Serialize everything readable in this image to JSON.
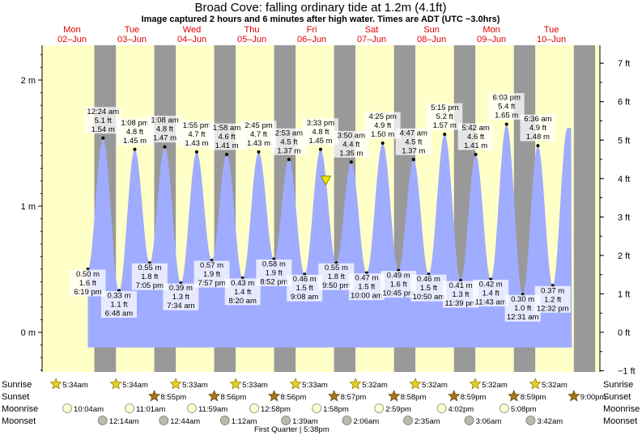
{
  "chart_data": {
    "type": "area",
    "title": "Broad Cove: falling  ordinary tide at 1.2m (4.1ft)",
    "subtitle": "Image captured 2 hours and 6 minutes after high water. Times are ADT (UTC −3.0hrs)",
    "left_axis": {
      "unit": "m",
      "range": [
        -0.3,
        2.25
      ],
      "ticks": [
        {
          "v": 0,
          "label": "0 m"
        },
        {
          "v": 1,
          "label": "1 m"
        },
        {
          "v": 2,
          "label": "2 m"
        }
      ]
    },
    "right_axis": {
      "unit": "ft",
      "ticks": [
        "−1 ft",
        "0 ft",
        "1 ft",
        "2 ft",
        "3 ft",
        "4 ft",
        "5 ft",
        "6 ft",
        "7 ft"
      ]
    },
    "x_range_days": [
      0,
      9.31
    ],
    "days": [
      {
        "dow": "Mon",
        "date": "02–Jun"
      },
      {
        "dow": "Tue",
        "date": "03–Jun"
      },
      {
        "dow": "Wed",
        "date": "04–Jun"
      },
      {
        "dow": "Thu",
        "date": "05–Jun"
      },
      {
        "dow": "Fri",
        "date": "06–Jun"
      },
      {
        "dow": "Sat",
        "date": "07–Jun"
      },
      {
        "dow": "Sun",
        "date": "08–Jun"
      },
      {
        "dow": "Mon",
        "date": "09–Jun"
      },
      {
        "dow": "Tue",
        "date": "10–Jun"
      }
    ],
    "extremes": [
      {
        "t": "6:19 pm",
        "ft": "1.6 ft",
        "m": "0.50 m",
        "type": "low",
        "day": 0,
        "h": 18.32,
        "v": 0.5
      },
      {
        "t": "12:24 am",
        "ft": "5.1 ft",
        "m": "1.54 m",
        "type": "high",
        "day": 1,
        "h": 0.4,
        "v": 1.54
      },
      {
        "t": "6:48 am",
        "ft": "1.1 ft",
        "m": "0.33 m",
        "type": "low",
        "day": 1,
        "h": 6.8,
        "v": 0.33
      },
      {
        "t": "1:08 pm",
        "ft": "4.8 ft",
        "m": "1.45 m",
        "type": "high",
        "day": 1,
        "h": 13.13,
        "v": 1.45
      },
      {
        "t": "7:05 pm",
        "ft": "1.8 ft",
        "m": "0.55 m",
        "type": "low",
        "day": 1,
        "h": 19.08,
        "v": 0.55
      },
      {
        "t": "1:08 am",
        "ft": "4.8 ft",
        "m": "1.47 m",
        "type": "high",
        "day": 2,
        "h": 1.13,
        "v": 1.47
      },
      {
        "t": "7:34 am",
        "ft": "1.3 ft",
        "m": "0.39 m",
        "type": "low",
        "day": 2,
        "h": 7.57,
        "v": 0.39
      },
      {
        "t": "1:55 pm",
        "ft": "4.7 ft",
        "m": "1.43 m",
        "type": "high",
        "day": 2,
        "h": 13.92,
        "v": 1.43
      },
      {
        "t": "7:57 pm",
        "ft": "1.9 ft",
        "m": "0.57 m",
        "type": "low",
        "day": 2,
        "h": 19.95,
        "v": 0.57
      },
      {
        "t": "1:58 am",
        "ft": "4.6 ft",
        "m": "1.41 m",
        "type": "high",
        "day": 3,
        "h": 1.97,
        "v": 1.41
      },
      {
        "t": "8:20 am",
        "ft": "1.4 ft",
        "m": "0.43 m",
        "type": "low",
        "day": 3,
        "h": 8.33,
        "v": 0.43
      },
      {
        "t": "2:45 pm",
        "ft": "4.7 ft",
        "m": "1.43 m",
        "type": "high",
        "day": 3,
        "h": 14.75,
        "v": 1.43
      },
      {
        "t": "8:52 pm",
        "ft": "1.9 ft",
        "m": "0.58 m",
        "type": "low",
        "day": 3,
        "h": 20.87,
        "v": 0.58
      },
      {
        "t": "2:53 am",
        "ft": "4.5 ft",
        "m": "1.37 m",
        "type": "high",
        "day": 4,
        "h": 2.88,
        "v": 1.37
      },
      {
        "t": "9:08 am",
        "ft": "1.5 ft",
        "m": "0.46 m",
        "type": "low",
        "day": 4,
        "h": 9.13,
        "v": 0.46
      },
      {
        "t": "3:33 pm",
        "ft": "4.8 ft",
        "m": "1.45 m",
        "type": "high",
        "day": 4,
        "h": 15.55,
        "v": 1.45
      },
      {
        "t": "9:50 pm",
        "ft": "1.8 ft",
        "m": "0.55 m",
        "type": "low",
        "day": 4,
        "h": 21.83,
        "v": 0.55
      },
      {
        "t": "3:50 am",
        "ft": "4.4 ft",
        "m": "1.35 m",
        "type": "high",
        "day": 5,
        "h": 3.83,
        "v": 1.35
      },
      {
        "t": "10:00 am",
        "ft": "1.5 ft",
        "m": "0.47 m",
        "type": "low",
        "day": 5,
        "h": 10.0,
        "v": 0.47
      },
      {
        "t": "4:25 pm",
        "ft": "4.9 ft",
        "m": "1.50 m",
        "type": "high",
        "day": 5,
        "h": 16.42,
        "v": 1.5
      },
      {
        "t": "10:45 pm",
        "ft": "1.6 ft",
        "m": "0.49 m",
        "type": "low",
        "day": 5,
        "h": 22.75,
        "v": 0.49
      },
      {
        "t": "4:47 am",
        "ft": "4.5 ft",
        "m": "1.37 m",
        "type": "high",
        "day": 6,
        "h": 4.78,
        "v": 1.37
      },
      {
        "t": "10:50 am",
        "ft": "1.5 ft",
        "m": "0.46 m",
        "type": "low",
        "day": 6,
        "h": 10.83,
        "v": 0.46
      },
      {
        "t": "5:15 pm",
        "ft": "5.2 ft",
        "m": "1.57 m",
        "type": "high",
        "day": 6,
        "h": 17.25,
        "v": 1.57
      },
      {
        "t": "11:39 pm",
        "ft": "1.3 ft",
        "m": "0.41 m",
        "type": "low",
        "day": 6,
        "h": 23.65,
        "v": 0.41
      },
      {
        "t": "5:42 am",
        "ft": "4.6 ft",
        "m": "1.41 m",
        "type": "high",
        "day": 7,
        "h": 5.7,
        "v": 1.41
      },
      {
        "t": "11:43 am",
        "ft": "1.4 ft",
        "m": "0.42 m",
        "type": "low",
        "day": 7,
        "h": 11.72,
        "v": 0.42
      },
      {
        "t": "6:03 pm",
        "ft": "5.4 ft",
        "m": "1.65 m",
        "type": "high",
        "day": 7,
        "h": 18.05,
        "v": 1.65
      },
      {
        "t": "12:31 am",
        "ft": "1.0 ft",
        "m": "0.30 m",
        "type": "low",
        "day": 8,
        "h": 0.52,
        "v": 0.3
      },
      {
        "t": "6:36 am",
        "ft": "4.9 ft",
        "m": "1.48 m",
        "type": "high",
        "day": 8,
        "h": 6.6,
        "v": 1.48
      },
      {
        "t": "12:32 pm",
        "ft": "1.2 ft",
        "m": "0.37 m",
        "type": "low",
        "day": 8,
        "h": 12.53,
        "v": 0.37
      }
    ],
    "current": {
      "day": 4,
      "h": 17.65,
      "v": 1.2
    },
    "colors": {
      "day": "#ffffc8",
      "night": "#999999",
      "water": "#a0acff",
      "label_bg": "#ffffff"
    },
    "astronomy": {
      "row_labels": {
        "sunrise": "Sunrise",
        "sunset": "Sunset",
        "moonrise": "Moonrise",
        "moonset": "Moonset"
      },
      "sunrise": [
        {
          "day": 0,
          "h": 5.57,
          "t": "5:34am"
        },
        {
          "day": 1,
          "h": 5.57,
          "t": "5:34am"
        },
        {
          "day": 2,
          "h": 5.55,
          "t": "5:33am"
        },
        {
          "day": 3,
          "h": 5.55,
          "t": "5:33am"
        },
        {
          "day": 4,
          "h": 5.55,
          "t": "5:33am"
        },
        {
          "day": 5,
          "h": 5.53,
          "t": "5:32am"
        },
        {
          "day": 6,
          "h": 5.53,
          "t": "5:32am"
        },
        {
          "day": 7,
          "h": 5.53,
          "t": "5:32am"
        },
        {
          "day": 8,
          "h": 5.53,
          "t": "5:32am"
        }
      ],
      "sunset": [
        {
          "day": 1,
          "h": 20.92,
          "t": "8:55pm"
        },
        {
          "day": 2,
          "h": 20.93,
          "t": "8:56pm"
        },
        {
          "day": 3,
          "h": 20.93,
          "t": "8:56pm"
        },
        {
          "day": 4,
          "h": 20.95,
          "t": "8:57pm"
        },
        {
          "day": 5,
          "h": 20.97,
          "t": "8:58pm"
        },
        {
          "day": 6,
          "h": 20.98,
          "t": "8:59pm"
        },
        {
          "day": 7,
          "h": 20.98,
          "t": "8:59pm"
        },
        {
          "day": 8,
          "h": 21.0,
          "t": "9:00pm"
        }
      ],
      "moonrise": [
        {
          "day": 0,
          "h": 10.07,
          "t": "10:04am"
        },
        {
          "day": 1,
          "h": 11.02,
          "t": "11:01am"
        },
        {
          "day": 2,
          "h": 11.98,
          "t": "11:59am"
        },
        {
          "day": 3,
          "h": 12.97,
          "t": "12:58pm"
        },
        {
          "day": 4,
          "h": 13.97,
          "t": "1:58pm"
        },
        {
          "day": 5,
          "h": 14.98,
          "t": "2:59pm"
        },
        {
          "day": 6,
          "h": 16.03,
          "t": "4:02pm"
        },
        {
          "day": 7,
          "h": 17.13,
          "t": "5:08pm"
        }
      ],
      "moonset": [
        {
          "day": 1,
          "h": 0.23,
          "t": "12:14am"
        },
        {
          "day": 2,
          "h": 0.73,
          "t": "12:44am"
        },
        {
          "day": 3,
          "h": 1.2,
          "t": "1:12am"
        },
        {
          "day": 4,
          "h": 1.65,
          "t": "1:39am"
        },
        {
          "day": 5,
          "h": 2.1,
          "t": "2:06am"
        },
        {
          "day": 6,
          "h": 2.58,
          "t": "2:35am"
        },
        {
          "day": 7,
          "h": 3.1,
          "t": "3:06am"
        },
        {
          "day": 8,
          "h": 3.7,
          "t": "3:42am"
        }
      ],
      "moon_phase_note": "First Quarter | 5:38pm"
    }
  }
}
